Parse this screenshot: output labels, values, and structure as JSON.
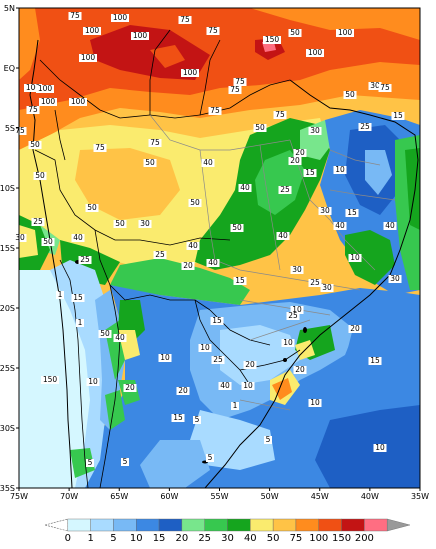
{
  "map": {
    "lat_labels": [
      "5N",
      "EQ",
      "5S",
      "10S",
      "15S",
      "20S",
      "25S",
      "30S",
      "35S"
    ],
    "lon_labels": [
      "75W",
      "70W",
      "65W",
      "60W",
      "55W",
      "50W",
      "45W",
      "40W",
      "35W"
    ],
    "contour_labels": [
      "100",
      "100",
      "100",
      "100",
      "100",
      "100",
      "100",
      "100",
      "100",
      "100",
      "75",
      "75",
      "75",
      "75",
      "75",
      "75",
      "75",
      "75",
      "75",
      "75",
      "50",
      "50",
      "50",
      "50",
      "50",
      "50",
      "50",
      "50",
      "50",
      "50",
      "40",
      "40",
      "40",
      "40",
      "40",
      "40",
      "40",
      "40",
      "30",
      "30",
      "30",
      "30",
      "30",
      "30",
      "25",
      "25",
      "25",
      "25",
      "25",
      "25",
      "20",
      "20",
      "20",
      "20",
      "20",
      "20",
      "15",
      "15",
      "15",
      "15",
      "15",
      "15",
      "15",
      "10",
      "10",
      "10",
      "10",
      "10",
      "10",
      "10",
      "10",
      "10",
      "5",
      "5",
      "5",
      "5",
      "5",
      "1",
      "1",
      "1",
      "150",
      "150",
      "40",
      "30",
      "20",
      "15",
      "25",
      "50",
      "75",
      "10",
      "25",
      "20",
      "30",
      "40",
      "50",
      "75",
      "100"
    ]
  },
  "legend": {
    "values": [
      "0",
      "1",
      "5",
      "10",
      "15",
      "20",
      "25",
      "30",
      "40",
      "50",
      "75",
      "100",
      "150",
      "200"
    ],
    "colors": [
      "#ffffff",
      "#d5f7ff",
      "#a9dbff",
      "#78b9f5",
      "#3c88e3",
      "#1e5fc4",
      "#78e68c",
      "#37c84f",
      "#15a51e",
      "#faeb6e",
      "#ffc346",
      "#ff8c1e",
      "#f05014",
      "#c31414",
      "#ff6e82"
    ]
  },
  "palette": {
    "over_100": "#f05014",
    "over_75": "#ff8c1e",
    "over_50": "#ffc346",
    "over_40": "#faeb6e",
    "over_30": "#15a51e",
    "over_25": "#37c84f",
    "over_20": "#78e68c",
    "over_15": "#1e5fc4",
    "over_10": "#3c88e3",
    "over_5": "#78b9f5",
    "over_1": "#a9dbff",
    "under_1": "#d5f7ff",
    "over_150": "#c31414",
    "over_200": "#ff6e82"
  }
}
